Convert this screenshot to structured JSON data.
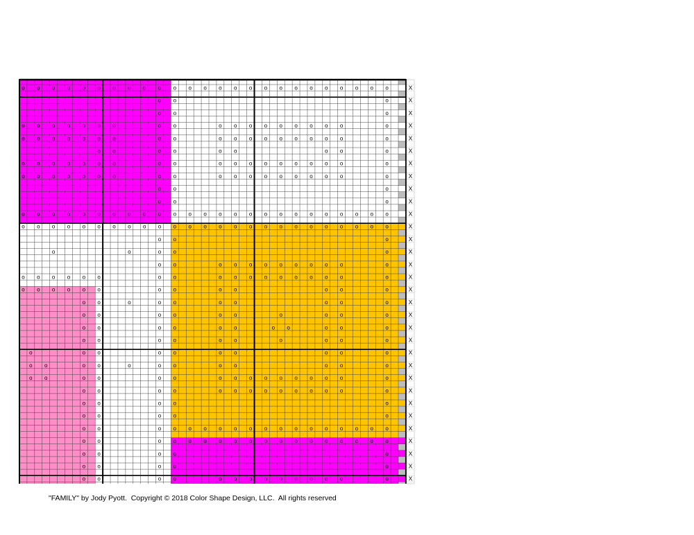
{
  "pattern": {
    "stitch_symbol": "o",
    "row_end_symbol": "X",
    "colors": {
      "magenta": "#FF00FF",
      "orange": "#FFC400",
      "pink": "#FF8EC8",
      "gray": "#BDBDBD",
      "background": "#FFFFFF"
    },
    "regions": [
      {
        "color": "magenta",
        "cell_cols": [
          0,
          20
        ],
        "rows": [
          0,
          11
        ]
      },
      {
        "color": "orange",
        "cell_cols": [
          20,
          50
        ],
        "rows": [
          11,
          28
        ]
      },
      {
        "color": "magenta",
        "cell_cols": [
          20,
          50
        ],
        "rows": [
          28,
          32
        ]
      },
      {
        "color": "pink",
        "cell_cols": [
          0,
          10
        ],
        "rows": [
          16,
          32
        ]
      }
    ],
    "rows": [
      [
        0,
        1,
        2,
        3,
        4,
        5,
        6,
        7,
        8,
        9,
        10,
        11,
        12,
        13,
        14,
        15,
        16,
        17,
        18,
        19,
        20,
        21,
        22,
        23,
        24
      ],
      [
        9,
        10,
        24
      ],
      [
        9,
        10,
        24
      ],
      [
        0,
        1,
        2,
        3,
        4,
        5,
        6,
        9,
        10,
        13,
        14,
        15,
        16,
        17,
        18,
        19,
        20,
        21,
        24
      ],
      [
        0,
        1,
        2,
        3,
        4,
        5,
        6,
        9,
        10,
        13,
        14,
        15,
        16,
        17,
        18,
        19,
        20,
        21,
        24
      ],
      [
        5,
        6,
        9,
        10,
        13,
        14,
        20,
        21,
        24
      ],
      [
        0,
        1,
        2,
        3,
        4,
        5,
        6,
        9,
        10,
        13,
        14,
        15,
        16,
        17,
        18,
        19,
        20,
        21,
        24
      ],
      [
        0,
        1,
        2,
        3,
        4,
        5,
        6,
        9,
        10,
        13,
        14,
        15,
        16,
        17,
        18,
        19,
        20,
        21,
        24
      ],
      [
        9,
        10,
        24
      ],
      [
        9,
        10,
        24
      ],
      [
        0,
        1,
        2,
        3,
        4,
        5,
        6,
        7,
        8,
        9,
        10,
        11,
        12,
        13,
        14,
        15,
        16,
        17,
        18,
        19,
        20,
        21,
        22,
        23,
        24
      ],
      [
        0,
        1,
        2,
        3,
        4,
        5,
        6,
        7,
        8,
        9,
        10,
        11,
        12,
        13,
        14,
        15,
        16,
        17,
        18,
        19,
        20,
        21,
        22,
        23,
        24
      ],
      [
        9,
        10,
        24
      ],
      [
        2,
        7,
        9,
        10,
        24
      ],
      [
        9,
        10,
        13,
        14,
        15,
        16,
        17,
        18,
        19,
        20,
        21,
        24
      ],
      [
        0,
        1,
        2,
        3,
        4,
        5,
        9,
        10,
        13,
        14,
        15,
        16,
        17,
        18,
        19,
        20,
        21,
        24
      ],
      [
        0,
        1,
        2,
        3,
        4,
        5,
        9,
        10,
        13,
        14,
        20,
        21,
        24
      ],
      [
        4,
        5,
        7,
        9,
        10,
        13,
        14,
        20,
        21,
        24
      ],
      [
        4,
        5,
        9,
        10,
        13,
        14,
        17,
        20,
        21,
        24
      ],
      [
        4,
        5,
        9,
        10,
        13,
        14,
        16.5,
        17.5,
        20,
        21,
        24
      ],
      [
        4,
        5,
        9,
        10,
        13,
        14,
        17,
        20,
        21,
        24
      ],
      [
        0.5,
        4,
        5,
        9,
        10,
        13,
        14,
        20,
        21,
        24
      ],
      [
        0.5,
        1.5,
        4,
        5,
        7,
        9,
        10,
        13,
        14,
        20,
        21,
        24
      ],
      [
        0.5,
        1.5,
        4,
        5,
        9,
        10,
        13,
        14,
        15,
        16,
        17,
        18,
        19,
        20,
        21,
        24
      ],
      [
        4,
        5,
        9,
        10,
        13,
        14,
        15,
        16,
        17,
        18,
        19,
        20,
        21,
        24
      ],
      [
        4,
        5,
        9,
        10,
        24
      ],
      [
        4,
        5,
        9,
        10,
        24
      ],
      [
        4,
        5,
        9,
        10,
        11,
        12,
        13,
        14,
        15,
        16,
        17,
        18,
        19,
        20,
        21,
        22,
        23,
        24
      ],
      [
        4,
        5,
        9,
        10,
        11,
        12,
        13,
        14,
        15,
        16,
        17,
        18,
        19,
        20,
        21,
        22,
        23,
        24
      ],
      [
        4,
        5,
        9,
        10,
        24
      ],
      [
        4,
        5,
        9,
        10,
        24
      ],
      [
        4,
        5,
        9,
        10,
        13,
        14,
        15,
        16,
        17,
        18,
        19,
        20,
        21,
        24
      ]
    ]
  },
  "caption": "\"FAMILY\" by Jody Pyott.  Copyright © 2018 Color Shape Design, LLC.  All rights reserved"
}
